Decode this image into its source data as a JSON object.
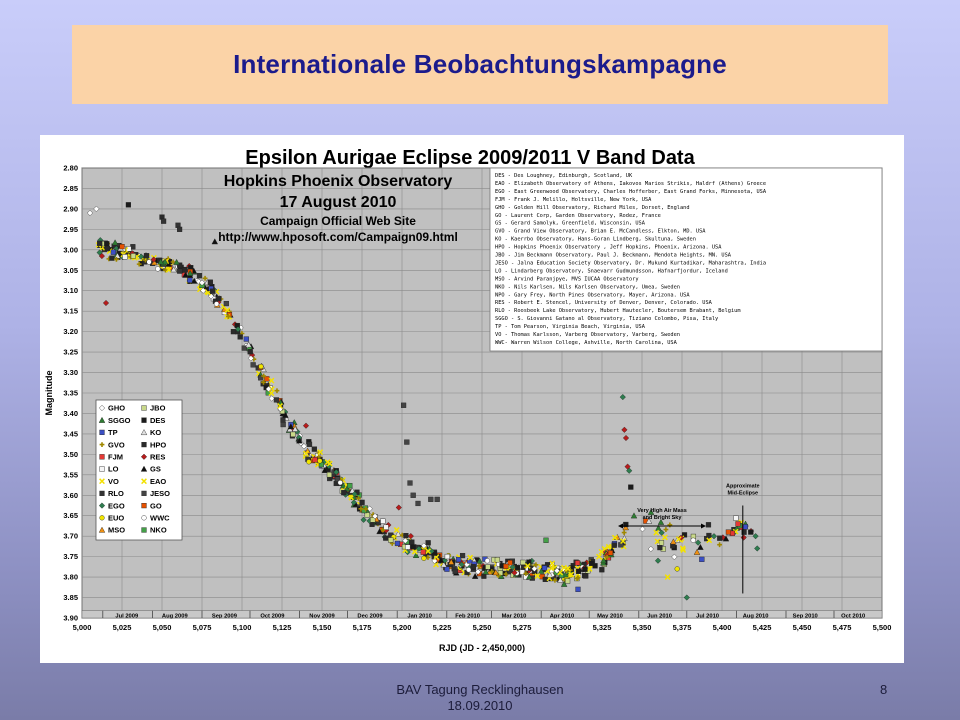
{
  "slide": {
    "title": "Internationale Beobachtungskampagne",
    "footer_line1": "BAV Tagung Recklinghausen",
    "footer_line2": "18.09.2010",
    "page_number": "8"
  },
  "chart_data": {
    "type": "scatter",
    "title": "Epsilon Aurigae Eclipse 2009/2011 V Band Data",
    "subtitle_lines": [
      "Hopkins Phoenix Observatory",
      "17 August 2010",
      "Campaign Official Web Site",
      "http://www.hposoft.com/Campaign09.html"
    ],
    "xlabel": "RJD (JD - 2,450,000)",
    "ylabel": "Magnitude",
    "xlim": [
      5000,
      5500
    ],
    "ylim": [
      2.8,
      3.9
    ],
    "y_inverted": true,
    "grid": true,
    "plot_background": "#c0c0c0",
    "x_ticks": [
      "5,000",
      "5,025",
      "5,050",
      "5,075",
      "5,100",
      "5,125",
      "5,150",
      "5,175",
      "5,200",
      "5,225",
      "5,250",
      "5,275",
      "5,300",
      "5,325",
      "5,350",
      "5,375",
      "5,400",
      "5,425",
      "5,450",
      "5,475",
      "5,500"
    ],
    "y_ticks": [
      "2.80",
      "2.85",
      "2.90",
      "2.95",
      "3.00",
      "3.05",
      "3.10",
      "3.15",
      "3.20",
      "3.25",
      "3.30",
      "3.35",
      "3.40",
      "3.45",
      "3.50",
      "3.55",
      "3.60",
      "3.65",
      "3.70",
      "3.75",
      "3.80",
      "3.85",
      "3.90"
    ],
    "months": [
      {
        "label": "Jul 2009",
        "x": 5028
      },
      {
        "label": "Aug 2009",
        "x": 5058
      },
      {
        "label": "Sep 2009",
        "x": 5089
      },
      {
        "label": "Oct 2009",
        "x": 5119
      },
      {
        "label": "Nov 2009",
        "x": 5150
      },
      {
        "label": "Dec 2009",
        "x": 5180
      },
      {
        "label": "Jan 2010",
        "x": 5211
      },
      {
        "label": "Feb 2010",
        "x": 5241
      },
      {
        "label": "Mar 2010",
        "x": 5270
      },
      {
        "label": "Apr 2010",
        "x": 5300
      },
      {
        "label": "May 2010",
        "x": 5330
      },
      {
        "label": "Jun 2010",
        "x": 5361
      },
      {
        "label": "Jul 2010",
        "x": 5391
      },
      {
        "label": "Aug 2010",
        "x": 5421
      },
      {
        "label": "Sep 2010",
        "x": 5452
      },
      {
        "label": "Oct 2010",
        "x": 5482
      }
    ],
    "month_boundaries": [
      5013,
      5044,
      5075,
      5105,
      5136,
      5166,
      5197,
      5228,
      5256,
      5287,
      5317,
      5348,
      5378,
      5409,
      5440,
      5470
    ],
    "annotations": {
      "high_air_mass": {
        "text_lines": [
          "Very High Air Mass",
          "and Bright Sky"
        ],
        "x_from": 5335,
        "x_to": 5390,
        "y": 3.675
      },
      "mid_eclipse": {
        "text_lines": [
          "Approximate",
          "Mid-Eclipse"
        ],
        "x": 5413,
        "y_from": 3.625,
        "y_to": 3.84
      }
    },
    "observers_note": [
      "DES -  Des Loughney, Edinburgh, Scotland, UK",
      "EAO -  Elizabeth Observatory of Athens, Iakovos Marios Strikis, Haldrf (Athens) Greece",
      "EGO -  East Greenwood Observatory, Charles Hofferber, East Grand Forks, Minnesota, USA",
      "FJM -  Frank J. Melillo, Holtsville, New York, USA",
      "GHO -  Golden Hill Observatory, Richard Miles, Dorset,  England",
      "GO  -  Laurent Corp, Garden Observatory, Rodez, France",
      "GS  -  Gerard Samolyk, Greenfield, Wisconsin, USA",
      "GVO -  Grand View Observatory, Brian E. McCandless, Elkton, MD.  USA",
      "KO  -  Kaerrbo Observatory, Hans-Goran Lindberg, Skultuna, Sweden",
      "HPO -  Hopkins Phoenix Observatory , Jeff Hopkins, Phoenix, Arizona. USA",
      "JBO -  Jim Beckmann Observatory, Paul J. Beckmann, Mendota Heights, MN. USA",
      "JESO - Jalna Education Society Observatory, Dr.  Mukund Kurtadikar, Maharashtra, India",
      "LO  -  Lindarberg Observatory, Snaevarr Gudmundsson, Hafnarfjordur, Iceland",
      "MSO -  Arvind Paranjpye, MVS IUCAA Observatory",
      "NKO -  Nils Karlsen, Nils Karlsen Observatory, Umea, Sweden",
      "NPO -  Gary Frey, North Pines Observatory, Mayer, Arizona. USA",
      "RES -  Robert E. Stencel, University of Denver, Denver, Colorado. USA",
      "RLO -  Roosbeek Lake Observatory, Hubert Hautecler, Boutersem Brabant, Belgium",
      "SGGO - S. Giovanni Gatano al Observatory, Tiziano Colombo, Pisa, Italy",
      "TP  -  Tom Pearson, Virginia Beach, Virginia, USA",
      "VO  -  Thomas Karlsson, Varberg Observatory,  Varberg, Sweden",
      "WWC-   Warren Wilson College, Ashville, North Carolina, USA"
    ],
    "legend": [
      {
        "code": "GHO",
        "marker": "diamond",
        "color": "#ffffff"
      },
      {
        "code": "JBO",
        "marker": "square",
        "color": "#c9d98a"
      },
      {
        "code": "SGGO",
        "marker": "triangle",
        "color": "#2e7d32"
      },
      {
        "code": "DES",
        "marker": "square",
        "color": "#1b1b1b"
      },
      {
        "code": "TP",
        "marker": "square",
        "color": "#3b4fc4"
      },
      {
        "code": "KO",
        "marker": "triangle",
        "color": "#e0e0e0"
      },
      {
        "code": "GVO",
        "marker": "cross",
        "color": "#f0e000"
      },
      {
        "code": "HPO",
        "marker": "square",
        "color": "#2a2a2a"
      },
      {
        "code": "FJM",
        "marker": "square",
        "color": "#e53935"
      },
      {
        "code": "RES",
        "marker": "diamond",
        "color": "#b71c1c"
      },
      {
        "code": "LO",
        "marker": "square",
        "color": "#f5f5f5"
      },
      {
        "code": "GS",
        "marker": "triangle",
        "color": "#111111"
      },
      {
        "code": "VO",
        "marker": "x",
        "color": "#f4e000"
      },
      {
        "code": "EAO",
        "marker": "x",
        "color": "#f2e200"
      },
      {
        "code": "RLO",
        "marker": "square",
        "color": "#333333"
      },
      {
        "code": "JESO",
        "marker": "square",
        "color": "#444444"
      },
      {
        "code": "EGO",
        "marker": "diamond",
        "color": "#2e7d4f"
      },
      {
        "code": "GO",
        "marker": "square",
        "color": "#e65100"
      },
      {
        "code": "EUO",
        "marker": "circle",
        "color": "#f1e500"
      },
      {
        "code": "WWC",
        "marker": "circle",
        "color": "#ffffff"
      },
      {
        "code": "MSO",
        "marker": "triangle",
        "color": "#f09010"
      },
      {
        "code": "NKO",
        "marker": "square",
        "color": "#43a047"
      }
    ],
    "trend": [
      [
        5010,
        2.99
      ],
      [
        5020,
        3.0
      ],
      [
        5030,
        3.01
      ],
      [
        5040,
        3.02
      ],
      [
        5050,
        3.03
      ],
      [
        5060,
        3.04
      ],
      [
        5070,
        3.06
      ],
      [
        5080,
        3.1
      ],
      [
        5090,
        3.15
      ],
      [
        5100,
        3.21
      ],
      [
        5110,
        3.28
      ],
      [
        5120,
        3.36
      ],
      [
        5130,
        3.43
      ],
      [
        5140,
        3.49
      ],
      [
        5150,
        3.52
      ],
      [
        5160,
        3.56
      ],
      [
        5170,
        3.61
      ],
      [
        5180,
        3.65
      ],
      [
        5190,
        3.69
      ],
      [
        5200,
        3.71
      ],
      [
        5210,
        3.73
      ],
      [
        5220,
        3.75
      ],
      [
        5235,
        3.77
      ],
      [
        5250,
        3.78
      ],
      [
        5265,
        3.78
      ],
      [
        5280,
        3.78
      ],
      [
        5295,
        3.79
      ],
      [
        5305,
        3.79
      ],
      [
        5315,
        3.78
      ],
      [
        5325,
        3.76
      ],
      [
        5335,
        3.71
      ],
      [
        5345,
        3.68
      ],
      [
        5360,
        3.7
      ],
      [
        5375,
        3.72
      ],
      [
        5390,
        3.72
      ],
      [
        5400,
        3.7
      ],
      [
        5410,
        3.68
      ],
      [
        5420,
        3.69
      ]
    ],
    "outliers": [
      [
        5005,
        2.91,
        "GHO"
      ],
      [
        5009,
        2.9,
        "GHO"
      ],
      [
        5015,
        3.13,
        "RES"
      ],
      [
        5029,
        2.89,
        "DES"
      ],
      [
        5050,
        2.92,
        "HPO"
      ],
      [
        5051,
        2.93,
        "RLO"
      ],
      [
        5060,
        2.94,
        "RLO"
      ],
      [
        5061,
        2.95,
        "RLO"
      ],
      [
        5201,
        3.38,
        "JESO"
      ],
      [
        5203,
        3.47,
        "JESO"
      ],
      [
        5205,
        3.57,
        "JESO"
      ],
      [
        5207,
        3.6,
        "JESO"
      ],
      [
        5210,
        3.62,
        "JESO"
      ],
      [
        5218,
        3.61,
        "JESO"
      ],
      [
        5222,
        3.61,
        "JESO"
      ],
      [
        5338,
        3.36,
        "EGO"
      ],
      [
        5339,
        3.44,
        "RES"
      ],
      [
        5340,
        3.46,
        "RES"
      ],
      [
        5341,
        3.53,
        "RES"
      ],
      [
        5342,
        3.54,
        "EGO"
      ],
      [
        5343,
        3.58,
        "DES"
      ],
      [
        5345,
        3.65,
        "SGGO"
      ],
      [
        5290,
        3.71,
        "NKO"
      ],
      [
        5310,
        3.83,
        "TP"
      ],
      [
        5360,
        3.76,
        "EGO"
      ],
      [
        5366,
        3.8,
        "VO"
      ],
      [
        5372,
        3.78,
        "EUO"
      ],
      [
        5378,
        3.85,
        "EGO"
      ],
      [
        5382,
        3.71,
        "WWC"
      ],
      [
        5392,
        3.71,
        "EAO"
      ],
      [
        5410,
        3.67,
        "FJM"
      ],
      [
        5418,
        3.69,
        "DES"
      ],
      [
        5421,
        3.7,
        "EGO"
      ],
      [
        5422,
        3.73,
        "EGO"
      ],
      [
        5395,
        3.7,
        "EGO"
      ],
      [
        5404,
        3.69,
        "GO"
      ],
      [
        5176,
        3.66,
        "EGO"
      ],
      [
        5198,
        3.63,
        "RES"
      ],
      [
        5083,
        2.98,
        "GS"
      ],
      [
        5140,
        3.43,
        "RES"
      ]
    ]
  }
}
